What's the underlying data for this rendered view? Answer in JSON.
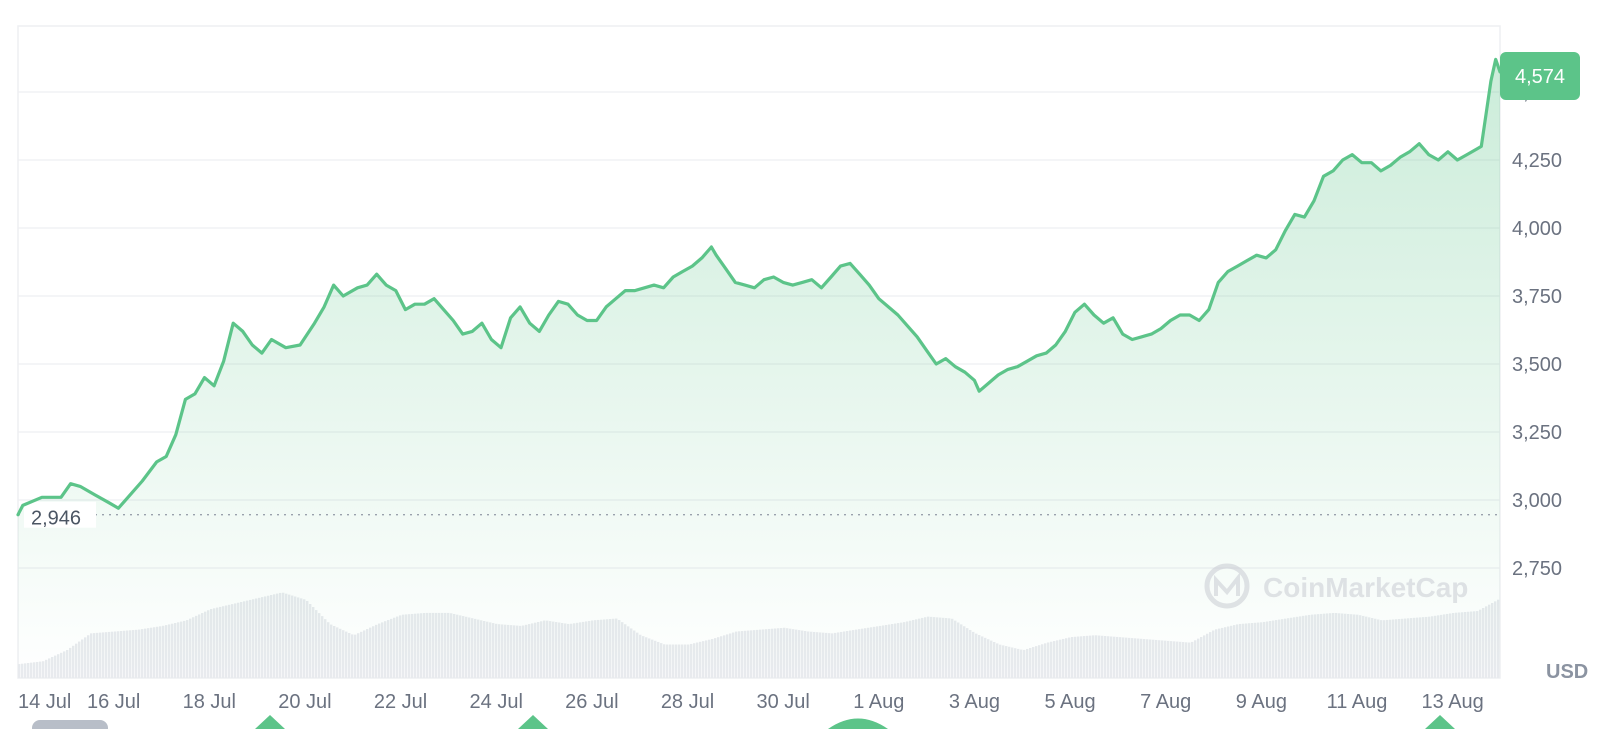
{
  "chart_data": {
    "type": "area",
    "currency_label": "USD",
    "watermark": "CoinMarketCap",
    "colors": {
      "line": "#5cc489",
      "fill": "#5cc489",
      "badge": "#5cc489",
      "volume": "#e8eaee",
      "grid": "#eeeff2",
      "axis_text": "#6b7280"
    },
    "ylim": [
      2560,
      4700
    ],
    "y_ticks": [
      {
        "value": 2750,
        "label": "2,750"
      },
      {
        "value": 3000,
        "label": "3,000"
      },
      {
        "value": 3250,
        "label": "3,250"
      },
      {
        "value": 3500,
        "label": "3,500"
      },
      {
        "value": 3750,
        "label": "3,750"
      },
      {
        "value": 4000,
        "label": "4,000"
      },
      {
        "value": 4250,
        "label": "4,250"
      },
      {
        "value": 4500,
        "label": "4,500"
      }
    ],
    "x_ticks": [
      {
        "day": 0,
        "label": "14 Jul"
      },
      {
        "day": 2,
        "label": "16 Jul"
      },
      {
        "day": 4,
        "label": "18 Jul"
      },
      {
        "day": 6,
        "label": "20 Jul"
      },
      {
        "day": 8,
        "label": "22 Jul"
      },
      {
        "day": 10,
        "label": "24 Jul"
      },
      {
        "day": 12,
        "label": "26 Jul"
      },
      {
        "day": 14,
        "label": "28 Jul"
      },
      {
        "day": 16,
        "label": "30 Jul"
      },
      {
        "day": 18,
        "label": "1 Aug"
      },
      {
        "day": 20,
        "label": "3 Aug"
      },
      {
        "day": 22,
        "label": "5 Aug"
      },
      {
        "day": 24,
        "label": "7 Aug"
      },
      {
        "day": 26,
        "label": "9 Aug"
      },
      {
        "day": 28,
        "label": "11 Aug"
      },
      {
        "day": 30,
        "label": "13 Aug"
      }
    ],
    "x_range_days": [
      0,
      30.99
    ],
    "baseline": {
      "value": 2946,
      "label": "2,946"
    },
    "last": {
      "value": 4574,
      "label": "4,574"
    },
    "price_series": [
      [
        0,
        2946
      ],
      [
        0.1,
        2980
      ],
      [
        0.5,
        3010
      ],
      [
        0.9,
        3010
      ],
      [
        1.1,
        3060
      ],
      [
        1.3,
        3050
      ],
      [
        1.6,
        3020
      ],
      [
        1.9,
        2990
      ],
      [
        2.1,
        2970
      ],
      [
        2.3,
        3010
      ],
      [
        2.6,
        3070
      ],
      [
        2.9,
        3140
      ],
      [
        3.1,
        3160
      ],
      [
        3.3,
        3240
      ],
      [
        3.5,
        3370
      ],
      [
        3.7,
        3390
      ],
      [
        3.9,
        3450
      ],
      [
        4.1,
        3420
      ],
      [
        4.3,
        3510
      ],
      [
        4.5,
        3650
      ],
      [
        4.7,
        3620
      ],
      [
        4.9,
        3570
      ],
      [
        5.1,
        3540
      ],
      [
        5.3,
        3590
      ],
      [
        5.6,
        3560
      ],
      [
        5.9,
        3570
      ],
      [
        6.2,
        3650
      ],
      [
        6.4,
        3710
      ],
      [
        6.6,
        3790
      ],
      [
        6.8,
        3750
      ],
      [
        7.1,
        3780
      ],
      [
        7.3,
        3790
      ],
      [
        7.5,
        3830
      ],
      [
        7.7,
        3790
      ],
      [
        7.9,
        3770
      ],
      [
        8.1,
        3700
      ],
      [
        8.3,
        3720
      ],
      [
        8.5,
        3720
      ],
      [
        8.7,
        3740
      ],
      [
        8.9,
        3700
      ],
      [
        9.1,
        3660
      ],
      [
        9.3,
        3610
      ],
      [
        9.5,
        3620
      ],
      [
        9.7,
        3650
      ],
      [
        9.9,
        3590
      ],
      [
        10.1,
        3560
      ],
      [
        10.3,
        3670
      ],
      [
        10.5,
        3710
      ],
      [
        10.7,
        3650
      ],
      [
        10.9,
        3620
      ],
      [
        11.1,
        3680
      ],
      [
        11.3,
        3730
      ],
      [
        11.5,
        3720
      ],
      [
        11.7,
        3680
      ],
      [
        11.9,
        3660
      ],
      [
        12.1,
        3660
      ],
      [
        12.3,
        3710
      ],
      [
        12.5,
        3740
      ],
      [
        12.7,
        3770
      ],
      [
        12.9,
        3770
      ],
      [
        13.1,
        3780
      ],
      [
        13.3,
        3790
      ],
      [
        13.5,
        3780
      ],
      [
        13.7,
        3820
      ],
      [
        13.9,
        3840
      ],
      [
        14.1,
        3860
      ],
      [
        14.3,
        3890
      ],
      [
        14.5,
        3930
      ],
      [
        14.6,
        3900
      ],
      [
        14.8,
        3850
      ],
      [
        15.0,
        3800
      ],
      [
        15.2,
        3790
      ],
      [
        15.4,
        3780
      ],
      [
        15.6,
        3810
      ],
      [
        15.8,
        3820
      ],
      [
        16.0,
        3800
      ],
      [
        16.2,
        3790
      ],
      [
        16.4,
        3800
      ],
      [
        16.6,
        3810
      ],
      [
        16.8,
        3780
      ],
      [
        17.0,
        3820
      ],
      [
        17.2,
        3860
      ],
      [
        17.4,
        3870
      ],
      [
        17.6,
        3830
      ],
      [
        17.8,
        3790
      ],
      [
        18.0,
        3740
      ],
      [
        18.2,
        3710
      ],
      [
        18.4,
        3680
      ],
      [
        18.6,
        3640
      ],
      [
        18.8,
        3600
      ],
      [
        19.0,
        3550
      ],
      [
        19.2,
        3500
      ],
      [
        19.4,
        3520
      ],
      [
        19.6,
        3490
      ],
      [
        19.8,
        3470
      ],
      [
        20.0,
        3440
      ],
      [
        20.1,
        3400
      ],
      [
        20.3,
        3430
      ],
      [
        20.5,
        3460
      ],
      [
        20.7,
        3480
      ],
      [
        20.9,
        3490
      ],
      [
        21.1,
        3510
      ],
      [
        21.3,
        3530
      ],
      [
        21.5,
        3540
      ],
      [
        21.7,
        3570
      ],
      [
        21.9,
        3620
      ],
      [
        22.1,
        3690
      ],
      [
        22.3,
        3720
      ],
      [
        22.5,
        3680
      ],
      [
        22.7,
        3650
      ],
      [
        22.9,
        3670
      ],
      [
        23.1,
        3610
      ],
      [
        23.3,
        3590
      ],
      [
        23.5,
        3600
      ],
      [
        23.7,
        3610
      ],
      [
        23.9,
        3630
      ],
      [
        24.1,
        3660
      ],
      [
        24.3,
        3680
      ],
      [
        24.5,
        3680
      ],
      [
        24.7,
        3660
      ],
      [
        24.9,
        3700
      ],
      [
        25.1,
        3800
      ],
      [
        25.3,
        3840
      ],
      [
        25.5,
        3860
      ],
      [
        25.7,
        3880
      ],
      [
        25.9,
        3900
      ],
      [
        26.1,
        3890
      ],
      [
        26.3,
        3920
      ],
      [
        26.5,
        3990
      ],
      [
        26.7,
        4050
      ],
      [
        26.9,
        4040
      ],
      [
        27.1,
        4100
      ],
      [
        27.3,
        4190
      ],
      [
        27.5,
        4210
      ],
      [
        27.7,
        4250
      ],
      [
        27.9,
        4270
      ],
      [
        28.1,
        4240
      ],
      [
        28.3,
        4240
      ],
      [
        28.5,
        4210
      ],
      [
        28.7,
        4230
      ],
      [
        28.9,
        4260
      ],
      [
        29.1,
        4280
      ],
      [
        29.3,
        4310
      ],
      [
        29.5,
        4270
      ],
      [
        29.7,
        4250
      ],
      [
        29.9,
        4280
      ],
      [
        30.1,
        4250
      ],
      [
        30.3,
        4270
      ],
      [
        30.5,
        4290
      ],
      [
        30.6,
        4300
      ],
      [
        30.7,
        4420
      ],
      [
        30.8,
        4540
      ],
      [
        30.9,
        4620
      ],
      [
        30.99,
        4574
      ]
    ],
    "volume_series": [
      [
        0,
        0.15
      ],
      [
        0.5,
        0.18
      ],
      [
        1,
        0.3
      ],
      [
        1.5,
        0.48
      ],
      [
        2,
        0.5
      ],
      [
        2.5,
        0.52
      ],
      [
        3,
        0.56
      ],
      [
        3.5,
        0.62
      ],
      [
        4,
        0.74
      ],
      [
        4.5,
        0.8
      ],
      [
        5,
        0.86
      ],
      [
        5.5,
        0.92
      ],
      [
        6,
        0.84
      ],
      [
        6.5,
        0.58
      ],
      [
        7,
        0.46
      ],
      [
        7.5,
        0.58
      ],
      [
        8,
        0.68
      ],
      [
        8.5,
        0.7
      ],
      [
        9,
        0.7
      ],
      [
        9.5,
        0.64
      ],
      [
        10,
        0.58
      ],
      [
        10.5,
        0.56
      ],
      [
        11,
        0.62
      ],
      [
        11.5,
        0.58
      ],
      [
        12,
        0.62
      ],
      [
        12.5,
        0.64
      ],
      [
        13,
        0.46
      ],
      [
        13.5,
        0.36
      ],
      [
        14,
        0.36
      ],
      [
        14.5,
        0.42
      ],
      [
        15,
        0.5
      ],
      [
        15.5,
        0.52
      ],
      [
        16,
        0.54
      ],
      [
        16.5,
        0.5
      ],
      [
        17,
        0.48
      ],
      [
        17.5,
        0.52
      ],
      [
        18,
        0.56
      ],
      [
        18.5,
        0.6
      ],
      [
        19,
        0.66
      ],
      [
        19.5,
        0.64
      ],
      [
        20,
        0.48
      ],
      [
        20.5,
        0.36
      ],
      [
        21,
        0.3
      ],
      [
        21.5,
        0.38
      ],
      [
        22,
        0.44
      ],
      [
        22.5,
        0.46
      ],
      [
        23,
        0.44
      ],
      [
        23.5,
        0.42
      ],
      [
        24,
        0.4
      ],
      [
        24.5,
        0.38
      ],
      [
        25,
        0.52
      ],
      [
        25.5,
        0.58
      ],
      [
        26,
        0.6
      ],
      [
        26.5,
        0.64
      ],
      [
        27,
        0.68
      ],
      [
        27.5,
        0.7
      ],
      [
        28,
        0.68
      ],
      [
        28.5,
        0.62
      ],
      [
        29,
        0.64
      ],
      [
        29.5,
        0.66
      ],
      [
        30,
        0.7
      ],
      [
        30.5,
        0.72
      ],
      [
        30.99,
        0.86
      ]
    ],
    "volume_max": 1.0
  }
}
